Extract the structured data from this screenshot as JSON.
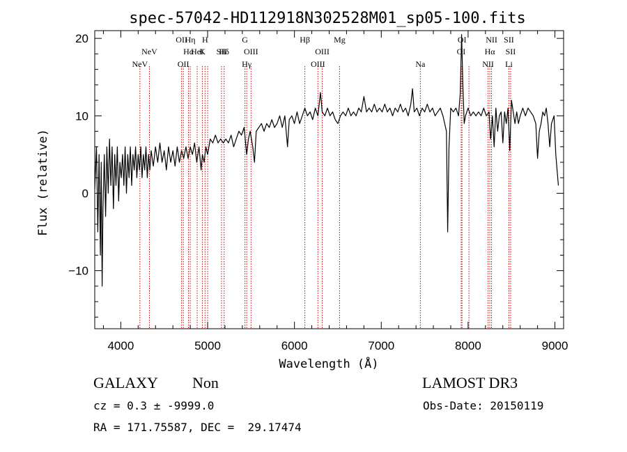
{
  "chart_data": {
    "type": "line",
    "title": "spec-57042-HD112918N302528M01_sp05-100.fits",
    "xlabel": "Wavelength (Å)",
    "ylabel": "Flux (relative)",
    "xlim": [
      3700,
      9100
    ],
    "ylim": [
      -17.5,
      21
    ],
    "xticks": [
      4000,
      5000,
      6000,
      7000,
      8000,
      9000
    ],
    "yticks": [
      -10,
      0,
      10,
      20
    ],
    "grid": false,
    "line_color": "#000000",
    "marker_color": "#cc0000",
    "series": [
      {
        "name": "spectrum",
        "points": [
          [
            3700,
            0.5
          ],
          [
            3720,
            6
          ],
          [
            3735,
            -5
          ],
          [
            3750,
            5
          ],
          [
            3765,
            -8
          ],
          [
            3775,
            4
          ],
          [
            3785,
            -12
          ],
          [
            3795,
            -2
          ],
          [
            3810,
            5
          ],
          [
            3825,
            -3
          ],
          [
            3840,
            6
          ],
          [
            3855,
            0
          ],
          [
            3870,
            7
          ],
          [
            3885,
            1
          ],
          [
            3900,
            6
          ],
          [
            3915,
            -2
          ],
          [
            3930,
            5
          ],
          [
            3945,
            1
          ],
          [
            3960,
            6
          ],
          [
            3975,
            -1
          ],
          [
            3990,
            4
          ],
          [
            4005,
            2
          ],
          [
            4020,
            5
          ],
          [
            4035,
            1
          ],
          [
            4050,
            6
          ],
          [
            4065,
            0
          ],
          [
            4080,
            5
          ],
          [
            4095,
            2
          ],
          [
            4110,
            6
          ],
          [
            4125,
            1
          ],
          [
            4140,
            5
          ],
          [
            4155,
            3
          ],
          [
            4170,
            6
          ],
          [
            4185,
            2
          ],
          [
            4200,
            5
          ],
          [
            4215,
            3
          ],
          [
            4230,
            6
          ],
          [
            4245,
            2
          ],
          [
            4260,
            5
          ],
          [
            4275,
            3
          ],
          [
            4290,
            6
          ],
          [
            4305,
            2
          ],
          [
            4320,
            5
          ],
          [
            4335,
            3
          ],
          [
            4350,
            5.5
          ],
          [
            4375,
            3.5
          ],
          [
            4400,
            6
          ],
          [
            4425,
            4
          ],
          [
            4450,
            6.5
          ],
          [
            4475,
            4
          ],
          [
            4500,
            5.5
          ],
          [
            4525,
            3
          ],
          [
            4550,
            6
          ],
          [
            4575,
            4
          ],
          [
            4600,
            5.5
          ],
          [
            4625,
            3.5
          ],
          [
            4650,
            6
          ],
          [
            4675,
            4
          ],
          [
            4700,
            5.5
          ],
          [
            4725,
            4.5
          ],
          [
            4750,
            6
          ],
          [
            4775,
            4.5
          ],
          [
            4800,
            6
          ],
          [
            4825,
            5
          ],
          [
            4850,
            6.5
          ],
          [
            4875,
            4
          ],
          [
            4900,
            6
          ],
          [
            4925,
            3
          ],
          [
            4940,
            5
          ],
          [
            4960,
            4
          ],
          [
            4980,
            6
          ],
          [
            5000,
            5
          ],
          [
            5030,
            7
          ],
          [
            5060,
            6.5
          ],
          [
            5090,
            7.5
          ],
          [
            5120,
            6.5
          ],
          [
            5150,
            7
          ],
          [
            5180,
            6.5
          ],
          [
            5210,
            7
          ],
          [
            5240,
            6.5
          ],
          [
            5270,
            7.5
          ],
          [
            5300,
            6
          ],
          [
            5330,
            7
          ],
          [
            5360,
            8
          ],
          [
            5390,
            7.5
          ],
          [
            5420,
            8.5
          ],
          [
            5450,
            5
          ],
          [
            5470,
            7
          ],
          [
            5490,
            8
          ],
          [
            5520,
            6
          ],
          [
            5540,
            4
          ],
          [
            5560,
            8
          ],
          [
            5590,
            8.5
          ],
          [
            5620,
            9
          ],
          [
            5650,
            8
          ],
          [
            5680,
            9
          ],
          [
            5710,
            8.5
          ],
          [
            5740,
            9.5
          ],
          [
            5770,
            8.5
          ],
          [
            5800,
            9
          ],
          [
            5830,
            10
          ],
          [
            5860,
            8.5
          ],
          [
            5890,
            10
          ],
          [
            5920,
            6
          ],
          [
            5940,
            9.5
          ],
          [
            5970,
            10
          ],
          [
            6000,
            9
          ],
          [
            6030,
            10.5
          ],
          [
            6060,
            9
          ],
          [
            6090,
            10
          ],
          [
            6120,
            11
          ],
          [
            6150,
            10
          ],
          [
            6180,
            10.5
          ],
          [
            6210,
            9.5
          ],
          [
            6240,
            11
          ],
          [
            6270,
            10
          ],
          [
            6300,
            13
          ],
          [
            6320,
            10.5
          ],
          [
            6350,
            10
          ],
          [
            6380,
            11
          ],
          [
            6410,
            10
          ],
          [
            6440,
            10.5
          ],
          [
            6470,
            9.5
          ],
          [
            6500,
            9
          ],
          [
            6530,
            10
          ],
          [
            6560,
            10.5
          ],
          [
            6590,
            10
          ],
          [
            6620,
            11
          ],
          [
            6650,
            10
          ],
          [
            6680,
            10.5
          ],
          [
            6710,
            10
          ],
          [
            6740,
            11
          ],
          [
            6770,
            10.5
          ],
          [
            6800,
            12.5
          ],
          [
            6830,
            10.5
          ],
          [
            6860,
            11
          ],
          [
            6890,
            10.5
          ],
          [
            6920,
            11.5
          ],
          [
            6950,
            10.5
          ],
          [
            6980,
            11
          ],
          [
            7010,
            10.5
          ],
          [
            7040,
            11.5
          ],
          [
            7070,
            10.5
          ],
          [
            7100,
            11
          ],
          [
            7130,
            10
          ],
          [
            7160,
            11
          ],
          [
            7190,
            10.5
          ],
          [
            7220,
            11.5
          ],
          [
            7250,
            10.5
          ],
          [
            7280,
            11
          ],
          [
            7310,
            10
          ],
          [
            7340,
            11.5
          ],
          [
            7360,
            13.5
          ],
          [
            7380,
            10.5
          ],
          [
            7410,
            11
          ],
          [
            7440,
            10
          ],
          [
            7470,
            11
          ],
          [
            7500,
            10.5
          ],
          [
            7530,
            11.5
          ],
          [
            7560,
            10.5
          ],
          [
            7590,
            11
          ],
          [
            7620,
            10
          ],
          [
            7650,
            10.5
          ],
          [
            7680,
            11
          ],
          [
            7710,
            10
          ],
          [
            7730,
            9
          ],
          [
            7750,
            8
          ],
          [
            7765,
            -5
          ],
          [
            7780,
            6
          ],
          [
            7800,
            11
          ],
          [
            7830,
            10.5
          ],
          [
            7860,
            11
          ],
          [
            7890,
            10
          ],
          [
            7910,
            13
          ],
          [
            7925,
            20.5
          ],
          [
            7940,
            14
          ],
          [
            7955,
            9
          ],
          [
            7970,
            10
          ],
          [
            8000,
            11
          ],
          [
            8030,
            10
          ],
          [
            8060,
            10.5
          ],
          [
            8090,
            10
          ],
          [
            8120,
            10.5
          ],
          [
            8150,
            10
          ],
          [
            8180,
            11
          ],
          [
            8210,
            10
          ],
          [
            8240,
            10.5
          ],
          [
            8260,
            7
          ],
          [
            8280,
            10
          ],
          [
            8300,
            6
          ],
          [
            8320,
            11
          ],
          [
            8340,
            8
          ],
          [
            8360,
            10
          ],
          [
            8380,
            10.5
          ],
          [
            8400,
            6.5
          ],
          [
            8420,
            10.5
          ],
          [
            8440,
            9
          ],
          [
            8460,
            11
          ],
          [
            8480,
            5.5
          ],
          [
            8500,
            12
          ],
          [
            8520,
            10.5
          ],
          [
            8540,
            9
          ],
          [
            8560,
            10.5
          ],
          [
            8580,
            9
          ],
          [
            8600,
            10
          ],
          [
            8630,
            11
          ],
          [
            8660,
            10
          ],
          [
            8690,
            11
          ],
          [
            8720,
            10.5
          ],
          [
            8750,
            10
          ],
          [
            8780,
            9
          ],
          [
            8800,
            4.5
          ],
          [
            8820,
            8
          ],
          [
            8840,
            9
          ],
          [
            8860,
            10.5
          ],
          [
            8880,
            10
          ],
          [
            8900,
            11
          ],
          [
            8920,
            9
          ],
          [
            8940,
            6
          ],
          [
            8960,
            9
          ],
          [
            8990,
            10
          ],
          [
            9010,
            5
          ],
          [
            9040,
            1
          ]
        ]
      }
    ],
    "lines_top": [
      {
        "label": "OII",
        "x": 4700,
        "row": 1
      },
      {
        "label": "Hη",
        "x": 4800,
        "row": 1
      },
      {
        "label": "H",
        "x": 4970,
        "row": 1
      },
      {
        "label": "G",
        "x": 5430,
        "row": 1
      },
      {
        "label": "Hβ",
        "x": 6120,
        "row": 1
      },
      {
        "label": "Mg",
        "x": 6520,
        "row": 1
      },
      {
        "label": "OI",
        "x": 7930,
        "row": 1
      },
      {
        "label": "NII",
        "x": 8270,
        "row": 1
      },
      {
        "label": "SII",
        "x": 8470,
        "row": 1
      },
      {
        "label": "NeV",
        "x": 4330,
        "row": 2
      },
      {
        "label": "Hα",
        "x": 4780,
        "row": 2
      },
      {
        "label": "K",
        "x": 4940,
        "row": 2
      },
      {
        "label": "Hδ",
        "x": 5190,
        "row": 2
      },
      {
        "label": "OIII",
        "x": 5500,
        "row": 2
      },
      {
        "label": "OIII",
        "x": 6320,
        "row": 2
      },
      {
        "label": "OI",
        "x": 7920,
        "row": 2
      },
      {
        "label": "Hα",
        "x": 8250,
        "row": 2
      },
      {
        "label": "SII",
        "x": 8490,
        "row": 2
      },
      {
        "label": "HeI",
        "x": 4880,
        "row": 3
      },
      {
        "label": "SII",
        "x": 5160,
        "row": 3
      },
      {
        "label": "NeV",
        "x": 4220,
        "row": 4
      },
      {
        "label": "OII",
        "x": 4720,
        "row": 4
      },
      {
        "label": "Hγ",
        "x": 5450,
        "row": 4
      },
      {
        "label": "OIII",
        "x": 6270,
        "row": 4
      },
      {
        "label": "Na",
        "x": 7450,
        "row": 4
      },
      {
        "label": "NII",
        "x": 8230,
        "row": 4
      },
      {
        "label": "Li",
        "x": 8470,
        "row": 4
      }
    ],
    "line_markers": [
      4220,
      4330,
      4700,
      4720,
      4780,
      4800,
      4880,
      4940,
      4970,
      5000,
      5160,
      5190,
      5430,
      5450,
      5500,
      6120,
      6270,
      6320,
      6520,
      7450,
      7920,
      7930,
      8010,
      8230,
      8250,
      8270,
      8470,
      8490
    ]
  },
  "info": {
    "object_type": "GALAXY",
    "subclass": "Non",
    "survey": "LAMOST DR3",
    "redshift": "cz = 0.3 ± -9999.0",
    "obs_date": "Obs-Date: 20150119",
    "coords": "RA = 171.75587, DEC =  29.17474"
  }
}
